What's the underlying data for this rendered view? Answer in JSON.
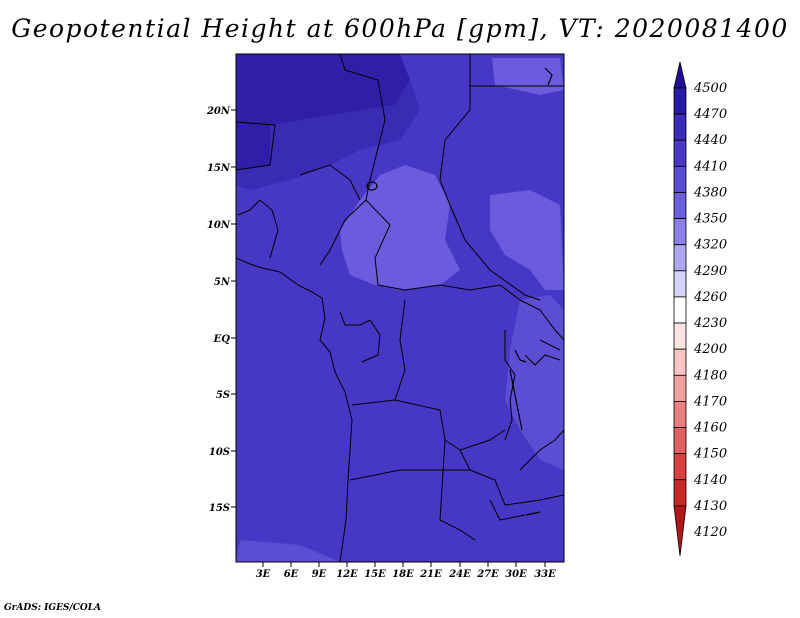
{
  "title": "Geopotential Height at 600hPa [gpm], VT: 2020081400",
  "map": {
    "lat_ticks": [
      "20N",
      "15N",
      "10N",
      "5N",
      "EQ",
      "5S",
      "10S",
      "15S"
    ],
    "lon_ticks": [
      "3E",
      "6E",
      "9E",
      "12E",
      "15E",
      "18E",
      "21E",
      "24E",
      "27E",
      "30E",
      "33E"
    ]
  },
  "colorbar": {
    "levels": [
      "4500",
      "4470",
      "4440",
      "4410",
      "4380",
      "4350",
      "4320",
      "4290",
      "4260",
      "4230",
      "4200",
      "4180",
      "4170",
      "4160",
      "4150",
      "4140",
      "4130",
      "4120"
    ],
    "colors": [
      "#1e0f96",
      "#2a1aa8",
      "#3a2cb8",
      "#4838c4",
      "#5a4cd0",
      "#6c5fdc",
      "#8a80e6",
      "#aea8f0",
      "#d4d2f8",
      "#ffffff",
      "#fde2e2",
      "#f8c4c4",
      "#f0a2a2",
      "#e88080",
      "#e06060",
      "#d84040",
      "#c82828",
      "#b21818"
    ]
  },
  "credit": "GrADS: IGES/COLA"
}
